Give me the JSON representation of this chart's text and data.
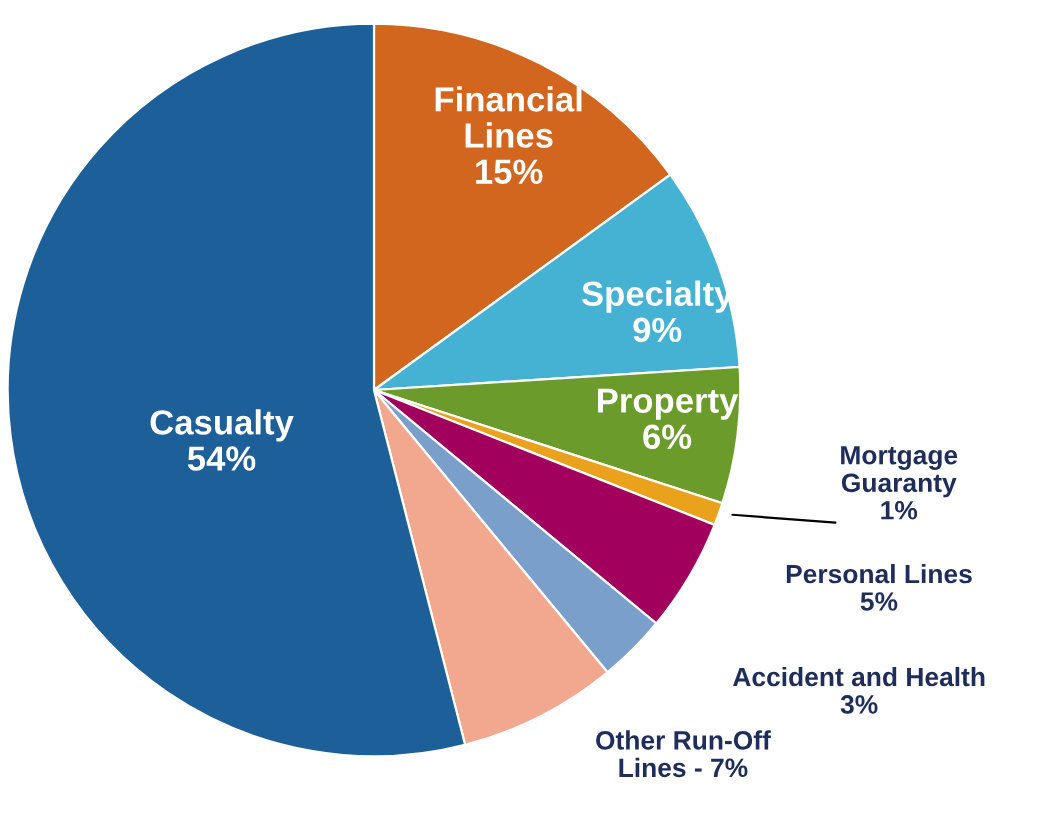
{
  "chart_data": {
    "type": "pie",
    "categories": [
      "Financial Lines",
      "Specialty",
      "Property",
      "Mortgage Guaranty",
      "Personal Lines",
      "Accident and Health",
      "Other Run-Off Lines -",
      "Casualty"
    ],
    "values": [
      15,
      9,
      6,
      1,
      5,
      3,
      7,
      54
    ],
    "value_labels": [
      "15%",
      "9%",
      "6%",
      "1%",
      "5%",
      "3%",
      "7%",
      "54%"
    ],
    "colors": [
      "#d2661e",
      "#45b2d3",
      "#6b9b2b",
      "#eaa21c",
      "#a1005c",
      "#7b9fcb",
      "#f1a88e",
      "#1c5f99"
    ],
    "legend": false
  }
}
